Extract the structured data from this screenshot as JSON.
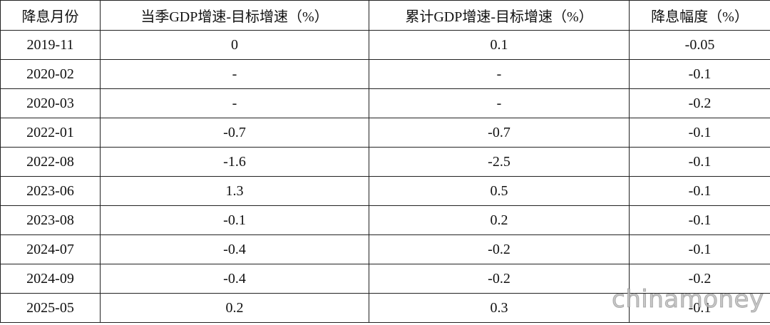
{
  "table": {
    "header": [
      "降息月份",
      "当季GDP增速-目标增速（%）",
      "累计GDP增速-目标增速（%）",
      "降息幅度（%）"
    ],
    "rows": [
      [
        "2019-11",
        "0",
        "0.1",
        "-0.05"
      ],
      [
        "2020-02",
        "-",
        "-",
        "-0.1"
      ],
      [
        "2020-03",
        "-",
        "-",
        "-0.2"
      ],
      [
        "2022-01",
        "-0.7",
        "-0.7",
        "-0.1"
      ],
      [
        "2022-08",
        "-1.6",
        "-2.5",
        "-0.1"
      ],
      [
        "2023-06",
        "1.3",
        "0.5",
        "-0.1"
      ],
      [
        "2023-08",
        "-0.1",
        "0.2",
        "-0.1"
      ],
      [
        "2024-07",
        "-0.4",
        "-0.2",
        "-0.1"
      ],
      [
        "2024-09",
        "-0.4",
        "-0.2",
        "-0.2"
      ],
      [
        "2025-05",
        "0.2",
        "0.3",
        "-0.1"
      ]
    ]
  },
  "watermark": "chinamoney"
}
